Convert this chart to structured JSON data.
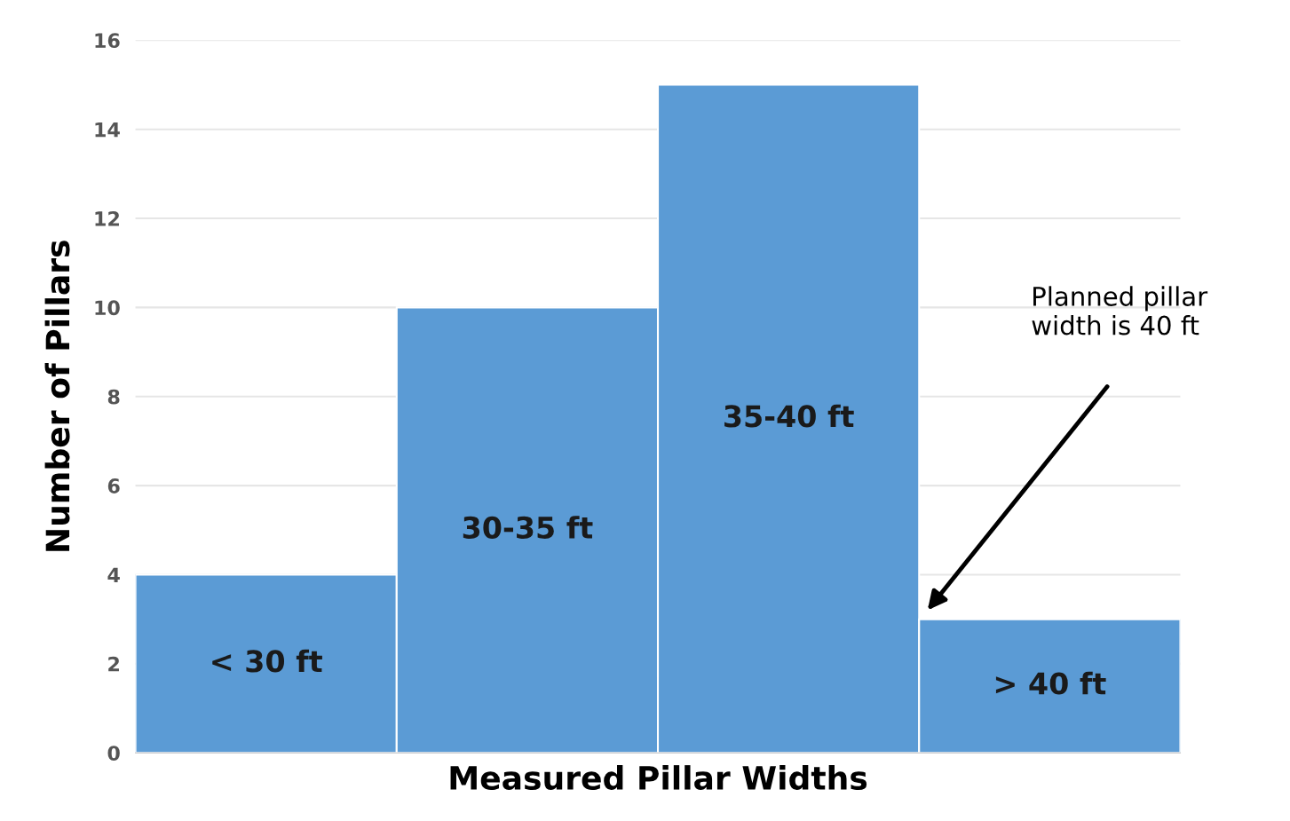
{
  "chart_data": {
    "type": "bar",
    "categories": [
      "< 30 ft",
      "30-35 ft",
      "35-40 ft",
      "> 40 ft"
    ],
    "values": [
      4,
      10,
      15,
      3
    ],
    "color": "#5b9bd5",
    "xlabel": "Measured Pillar Widths",
    "ylabel": "Number of Pillars",
    "ylim": [
      0,
      16
    ],
    "yticks": [
      0,
      2,
      4,
      6,
      8,
      10,
      12,
      14,
      16
    ],
    "grid": "y",
    "annotations": [
      "Planned pillar\nwidth is 40 ft"
    ]
  }
}
